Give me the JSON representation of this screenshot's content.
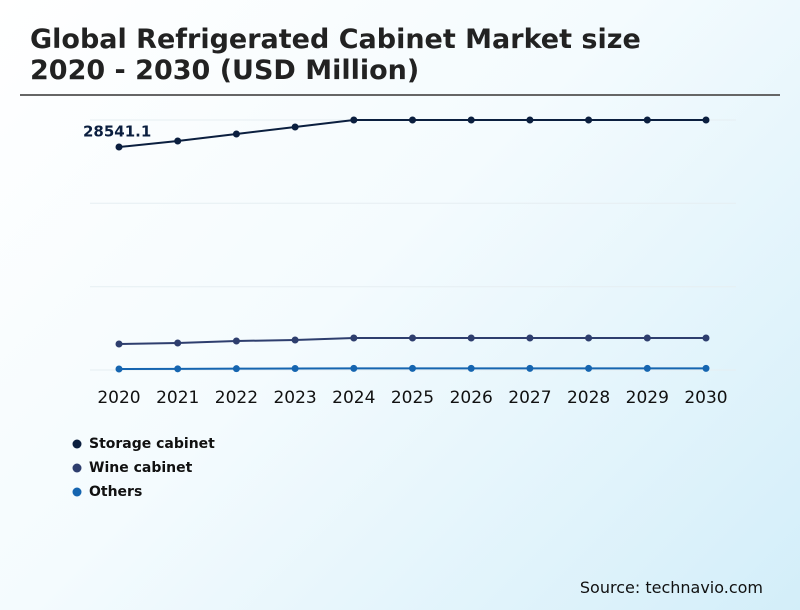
{
  "chart_data": {
    "type": "line",
    "title": "Global Refrigerated Cabinet Market size 2020 - 2030 (USD Million)",
    "x": [
      "2020",
      "2021",
      "2022",
      "2023",
      "2024",
      "2025",
      "2026",
      "2027",
      "2028",
      "2029",
      "2030"
    ],
    "series": [
      {
        "name": "Storage cabinet",
        "color": "#0b1f3f",
        "values": [
          28541.1,
          29312,
          30208,
          31104,
          32000,
          32000,
          32000,
          32000,
          32000,
          32000,
          32000
        ]
      },
      {
        "name": "Wine cabinet",
        "color": "#2e3e6e",
        "values": [
          3328,
          3456,
          3712,
          3840,
          4096,
          4096,
          4096,
          4096,
          4096,
          4096,
          4096
        ]
      },
      {
        "name": "Others",
        "color": "#1565b0",
        "values": [
          130,
          150,
          170,
          190,
          210,
          210,
          210,
          210,
          210,
          210,
          210
        ]
      }
    ],
    "ylim": [
      0,
      32000
    ],
    "source": "Source: technavio.com"
  }
}
